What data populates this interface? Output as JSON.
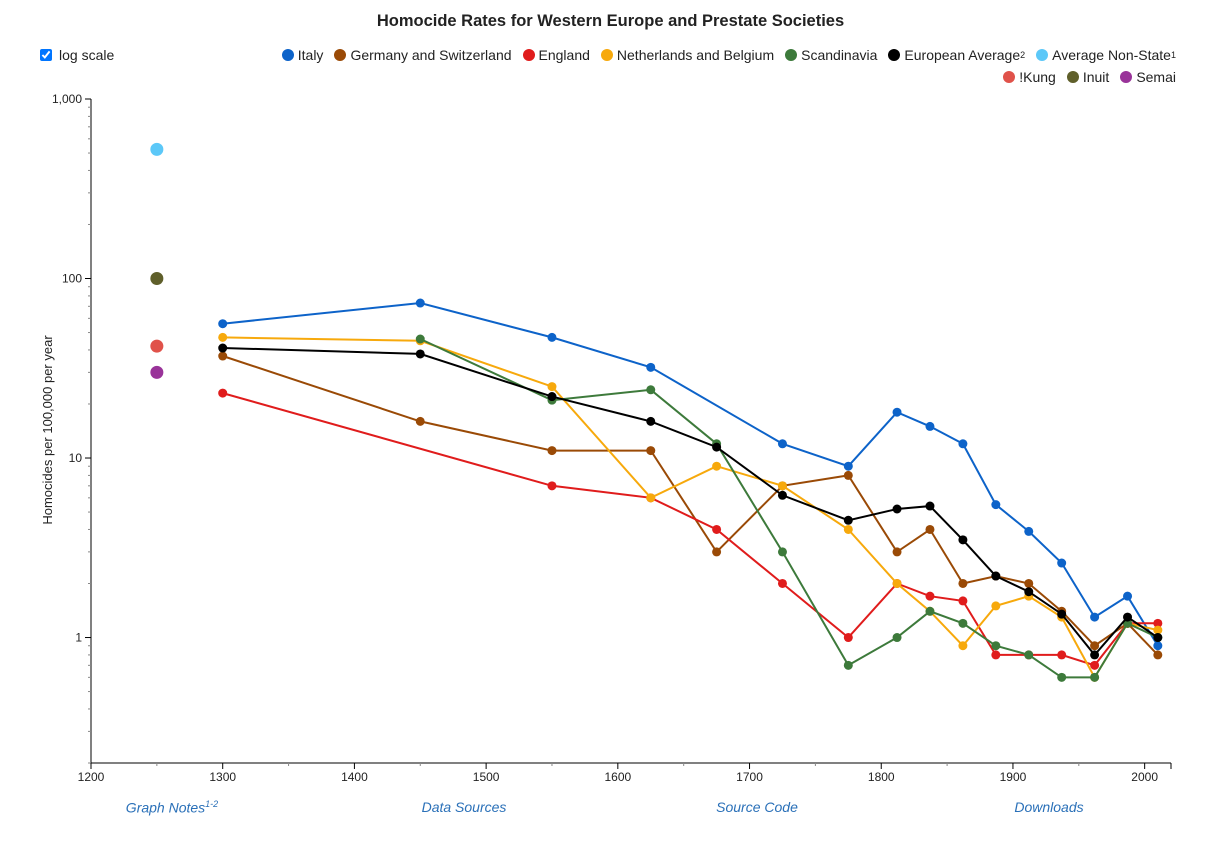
{
  "title": "Homocide Rates for Western Europe and Prestate Societies",
  "controls": {
    "log_scale_label": "log scale",
    "log_scale_checked": true
  },
  "footer": {
    "graph_notes": "Graph Notes",
    "graph_notes_sup": "1-2",
    "data_sources": "Data Sources",
    "source_code": "Source Code",
    "downloads": "Downloads"
  },
  "colors": {
    "axis": "#000000",
    "link": "#2a70b8"
  },
  "chart_data": {
    "type": "line",
    "title": "Homocide Rates for Western Europe and Prestate Societies",
    "ylabel": "Homocides per 100,000 per year",
    "xlabel": "",
    "xlim": [
      1200,
      2020
    ],
    "ylim": [
      0.2,
      1000
    ],
    "y_scale": "log",
    "x_ticks": [
      "1200",
      "1300",
      "1400",
      "1500",
      "1600",
      "1700",
      "1800",
      "1900",
      "2000"
    ],
    "y_ticks": [
      "1",
      "10",
      "100",
      "1,000"
    ],
    "legend_position": "top-right",
    "series": [
      {
        "name": "Italy",
        "color": "#0d63c9",
        "points": [
          [
            1300,
            56
          ],
          [
            1450,
            73
          ],
          [
            1550,
            47
          ],
          [
            1625,
            32
          ],
          [
            1725,
            12
          ],
          [
            1775,
            9
          ],
          [
            1812,
            18
          ],
          [
            1837,
            15
          ],
          [
            1862,
            12
          ],
          [
            1887,
            5.5
          ],
          [
            1912,
            3.9
          ],
          [
            1937,
            2.6
          ],
          [
            1962,
            1.3
          ],
          [
            1987,
            1.7
          ],
          [
            2010,
            0.9
          ]
        ]
      },
      {
        "name": "Germany and Switzerland",
        "color": "#9a4a06",
        "points": [
          [
            1300,
            37
          ],
          [
            1450,
            16
          ],
          [
            1550,
            11
          ],
          [
            1625,
            11
          ],
          [
            1675,
            3
          ],
          [
            1725,
            7
          ],
          [
            1775,
            8
          ],
          [
            1812,
            3
          ],
          [
            1837,
            4
          ],
          [
            1862,
            2
          ],
          [
            1887,
            2.2
          ],
          [
            1912,
            2
          ],
          [
            1937,
            1.4
          ],
          [
            1962,
            0.9
          ],
          [
            1987,
            1.2
          ],
          [
            2010,
            0.8
          ]
        ]
      },
      {
        "name": "England",
        "color": "#e01c1c",
        "points": [
          [
            1300,
            23
          ],
          [
            1550,
            7
          ],
          [
            1625,
            6
          ],
          [
            1675,
            4
          ],
          [
            1725,
            2
          ],
          [
            1775,
            1
          ],
          [
            1812,
            2
          ],
          [
            1837,
            1.7
          ],
          [
            1862,
            1.6
          ],
          [
            1887,
            0.8
          ],
          [
            1912,
            0.8
          ],
          [
            1937,
            0.8
          ],
          [
            1962,
            0.7
          ],
          [
            1987,
            1.2
          ],
          [
            2010,
            1.2
          ]
        ]
      },
      {
        "name": "Netherlands and Belgium",
        "color": "#f7a90c",
        "points": [
          [
            1300,
            47
          ],
          [
            1450,
            45
          ],
          [
            1550,
            25
          ],
          [
            1625,
            6
          ],
          [
            1675,
            9
          ],
          [
            1725,
            7
          ],
          [
            1775,
            4
          ],
          [
            1812,
            2
          ],
          [
            1837,
            1.4
          ],
          [
            1862,
            0.9
          ],
          [
            1887,
            1.5
          ],
          [
            1912,
            1.7
          ],
          [
            1937,
            1.3
          ],
          [
            1962,
            0.6
          ],
          [
            1987,
            1.2
          ],
          [
            2010,
            1.1
          ]
        ]
      },
      {
        "name": "Scandinavia",
        "color": "#3d7a3b",
        "points": [
          [
            1450,
            46
          ],
          [
            1550,
            21
          ],
          [
            1625,
            24
          ],
          [
            1675,
            12
          ],
          [
            1725,
            3
          ],
          [
            1775,
            0.7
          ],
          [
            1812,
            1
          ],
          [
            1837,
            1.4
          ],
          [
            1862,
            1.2
          ],
          [
            1887,
            0.9
          ],
          [
            1912,
            0.8
          ],
          [
            1937,
            0.6
          ],
          [
            1962,
            0.6
          ],
          [
            1987,
            1.2
          ],
          [
            2010,
            1
          ]
        ]
      },
      {
        "name": "European Average",
        "sup": "2",
        "color": "#000000",
        "points": [
          [
            1300,
            41
          ],
          [
            1450,
            38
          ],
          [
            1550,
            22
          ],
          [
            1625,
            16
          ],
          [
            1675,
            11.5
          ],
          [
            1725,
            6.2
          ],
          [
            1775,
            4.5
          ],
          [
            1812,
            5.2
          ],
          [
            1837,
            5.4
          ],
          [
            1862,
            3.5
          ],
          [
            1887,
            2.2
          ],
          [
            1912,
            1.8
          ],
          [
            1937,
            1.35
          ],
          [
            1962,
            0.8
          ],
          [
            1987,
            1.3
          ],
          [
            2010,
            1
          ]
        ]
      },
      {
        "name": "Average Non-State",
        "sup": "1",
        "color": "#5cc8f8",
        "points": [
          [
            1250,
            524
          ]
        ]
      },
      {
        "name": "!Kung",
        "color": "#e0524a",
        "points": [
          [
            1250,
            42
          ]
        ]
      },
      {
        "name": "Inuit",
        "color": "#5f5f2a",
        "points": [
          [
            1250,
            100
          ]
        ]
      },
      {
        "name": "Semai",
        "color": "#993399",
        "points": [
          [
            1250,
            30
          ]
        ]
      }
    ]
  }
}
